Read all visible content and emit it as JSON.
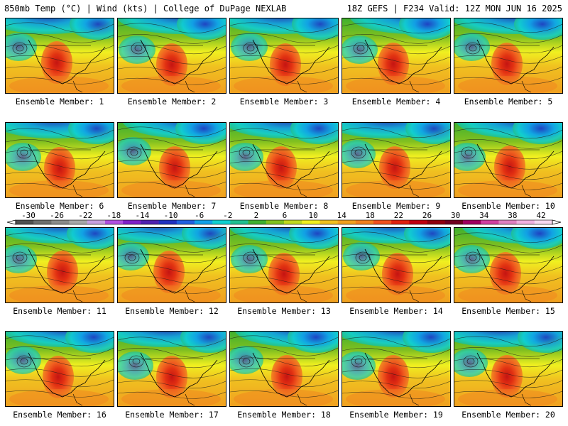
{
  "header": {
    "left": "850mb Temp (°C) | Wind (kts) | College of DuPage NEXLAB",
    "right": "18Z GEFS | F234 Valid: 12Z MON JUN 16 2025"
  },
  "members": [
    {
      "label": "Ensemble Member: 1"
    },
    {
      "label": "Ensemble Member: 2"
    },
    {
      "label": "Ensemble Member: 3"
    },
    {
      "label": "Ensemble Member: 4"
    },
    {
      "label": "Ensemble Member: 5"
    },
    {
      "label": "Ensemble Member: 6"
    },
    {
      "label": "Ensemble Member: 7"
    },
    {
      "label": "Ensemble Member: 8"
    },
    {
      "label": "Ensemble Member: 9"
    },
    {
      "label": "Ensemble Member: 10"
    },
    {
      "label": "Ensemble Member: 11"
    },
    {
      "label": "Ensemble Member: 12"
    },
    {
      "label": "Ensemble Member: 13"
    },
    {
      "label": "Ensemble Member: 14"
    },
    {
      "label": "Ensemble Member: 15"
    },
    {
      "label": "Ensemble Member: 16"
    },
    {
      "label": "Ensemble Member: 17"
    },
    {
      "label": "Ensemble Member: 18"
    },
    {
      "label": "Ensemble Member: 19"
    },
    {
      "label": "Ensemble Member: 20"
    }
  ],
  "colorbar": {
    "labels": [
      "-30",
      "-26",
      "-22",
      "-18",
      "-14",
      "-10",
      "-6",
      "-2",
      "2",
      "6",
      "10",
      "14",
      "18",
      "22",
      "26",
      "30",
      "34",
      "38",
      "42"
    ],
    "colors": [
      "#505050",
      "#6e6e6e",
      "#8a8a8a",
      "#a8a8a8",
      "#c8a0e0",
      "#b050e0",
      "#8020c8",
      "#5020b0",
      "#2030c0",
      "#2060e0",
      "#10a0e8",
      "#10d0d0",
      "#20c090",
      "#40b030",
      "#80c020",
      "#c0d820",
      "#f0f020",
      "#f0c020",
      "#f0a020",
      "#f08020",
      "#f05020",
      "#e02010",
      "#c00010",
      "#900010",
      "#700020",
      "#a00060",
      "#d040a0",
      "#e080c0",
      "#f0b0e0",
      "#f8d8f0"
    ]
  }
}
